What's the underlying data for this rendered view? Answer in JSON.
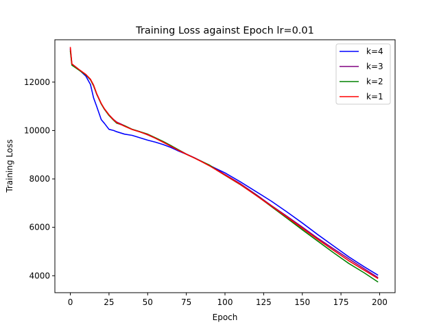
{
  "chart_data": {
    "type": "line",
    "title": "Training Loss against Epoch lr=0.01",
    "xlabel": "Epoch",
    "ylabel": "Training Loss",
    "xlim": [
      -10,
      210
    ],
    "ylim": [
      3300,
      13750
    ],
    "xticks": [
      0,
      25,
      50,
      75,
      100,
      125,
      150,
      175,
      200
    ],
    "yticks": [
      4000,
      6000,
      8000,
      10000,
      12000
    ],
    "grid": false,
    "legend_position": "top-right",
    "series": [
      {
        "name": "k=4",
        "color": "#0000ff",
        "x": [
          0,
          1,
          5,
          10,
          13,
          15,
          17,
          20,
          22,
          25,
          28,
          30,
          35,
          40,
          45,
          50,
          55,
          60,
          65,
          70,
          75,
          80,
          85,
          90,
          95,
          100,
          110,
          120,
          130,
          140,
          150,
          160,
          170,
          180,
          190,
          199
        ],
        "y": [
          13400,
          12750,
          12550,
          12250,
          11900,
          11350,
          11000,
          10450,
          10300,
          10050,
          10000,
          9950,
          9850,
          9800,
          9700,
          9600,
          9520,
          9420,
          9300,
          9150,
          9020,
          8880,
          8720,
          8560,
          8400,
          8250,
          7880,
          7480,
          7080,
          6640,
          6180,
          5700,
          5240,
          4780,
          4370,
          4020
        ]
      },
      {
        "name": "k=3",
        "color": "#800080",
        "x": [
          0,
          1,
          5,
          10,
          13,
          15,
          17,
          20,
          22,
          25,
          28,
          30,
          35,
          40,
          45,
          50,
          55,
          60,
          65,
          70,
          75,
          80,
          85,
          90,
          95,
          100,
          110,
          120,
          130,
          140,
          150,
          160,
          170,
          180,
          190,
          199
        ],
        "y": [
          13350,
          12720,
          12530,
          12300,
          12100,
          11850,
          11500,
          11100,
          10900,
          10650,
          10450,
          10350,
          10200,
          10050,
          9950,
          9820,
          9680,
          9520,
          9360,
          9200,
          9030,
          8880,
          8720,
          8550,
          8370,
          8180,
          7800,
          7360,
          6900,
          6460,
          6010,
          5550,
          5120,
          4700,
          4290,
          3920
        ]
      },
      {
        "name": "k=2",
        "color": "#008000",
        "x": [
          0,
          1,
          5,
          10,
          13,
          15,
          17,
          20,
          22,
          25,
          28,
          30,
          35,
          40,
          45,
          50,
          55,
          60,
          65,
          70,
          75,
          80,
          85,
          90,
          95,
          100,
          110,
          120,
          130,
          140,
          150,
          160,
          170,
          180,
          190,
          199
        ],
        "y": [
          13300,
          12700,
          12520,
          12300,
          12100,
          11850,
          11520,
          11100,
          10880,
          10620,
          10420,
          10300,
          10200,
          10050,
          9950,
          9850,
          9700,
          9550,
          9380,
          9200,
          9020,
          8870,
          8720,
          8570,
          8350,
          8150,
          7760,
          7330,
          6860,
          6380,
          5900,
          5430,
          4960,
          4510,
          4120,
          3740
        ]
      },
      {
        "name": "k=1",
        "color": "#ff0000",
        "x": [
          0,
          1,
          5,
          10,
          13,
          15,
          17,
          20,
          22,
          25,
          28,
          30,
          35,
          40,
          45,
          50,
          55,
          60,
          65,
          70,
          75,
          80,
          85,
          90,
          95,
          100,
          110,
          120,
          130,
          140,
          150,
          160,
          170,
          180,
          190,
          199
        ],
        "y": [
          13450,
          12750,
          12550,
          12320,
          12120,
          11880,
          11530,
          11120,
          10900,
          10650,
          10440,
          10330,
          10180,
          10040,
          9940,
          9830,
          9680,
          9520,
          9350,
          9180,
          9020,
          8870,
          8710,
          8540,
          8350,
          8160,
          7770,
          7320,
          6880,
          6420,
          5960,
          5500,
          5060,
          4620,
          4230,
          3880
        ]
      }
    ]
  }
}
